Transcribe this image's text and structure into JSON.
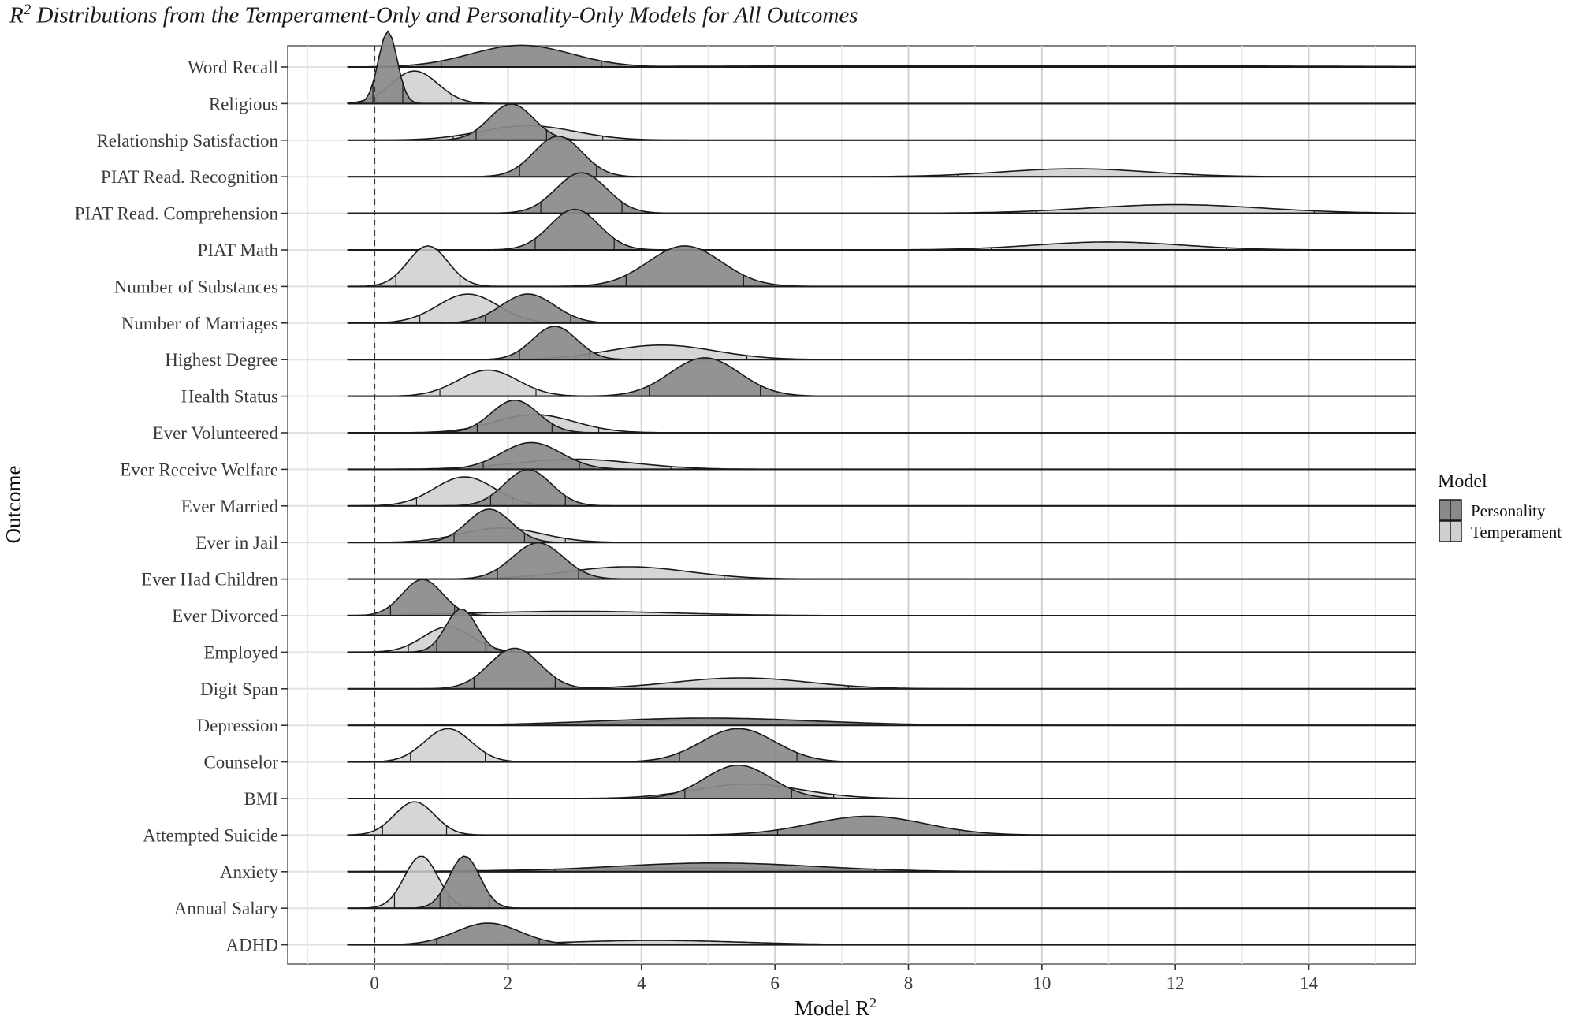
{
  "title_main": "R",
  "title_sup": "2",
  "title_rest": " Distributions from the Temperament-Only and Personality-Only Models for All Outcomes",
  "chart_data": {
    "type": "ridgeline-density",
    "title": "R² Distributions from the Temperament-Only and Personality-Only Models for All Outcomes",
    "xlabel": "Model R",
    "xlabel_sup": "2",
    "ylabel": "Outcome",
    "xlim": [
      -1.3,
      15.6
    ],
    "x_ticks": [
      0,
      2,
      4,
      6,
      8,
      10,
      12,
      14
    ],
    "reference_line": 0,
    "grid": true,
    "legend": {
      "title": "Model",
      "position": "right",
      "entries": [
        {
          "name": "Personality",
          "color": "#8a8a8a"
        },
        {
          "name": "Temperament",
          "color": "#cfcfcf"
        }
      ]
    },
    "colors": {
      "personality": "#8a8a8a",
      "temperament": "#cfcfcf",
      "outline": "#1a1a1a"
    },
    "categories": [
      "Word Recall",
      "Religious",
      "Relationship Satisfaction",
      "PIAT Read. Recognition",
      "PIAT Read. Comprehension",
      "PIAT Math",
      "Number of Substances",
      "Number of Marriages",
      "Highest Degree",
      "Health Status",
      "Ever Volunteered",
      "Ever Receive Welfare",
      "Ever Married",
      "Ever in Jail",
      "Ever Had Children",
      "Ever Divorced",
      "Employed",
      "Digit Span",
      "Depression",
      "Counselor",
      "BMI",
      "Attempted Suicide",
      "Anxiety",
      "Annual Salary",
      "ADHD"
    ],
    "series": [
      {
        "name": "Personality",
        "distributions": [
          {
            "mean": 2.2,
            "sd": 0.75,
            "peak": 0.3
          },
          {
            "mean": 0.2,
            "sd": 0.14,
            "peak": 1.0
          },
          {
            "mean": 2.05,
            "sd": 0.33,
            "peak": 0.5
          },
          {
            "mean": 2.75,
            "sd": 0.36,
            "peak": 0.56
          },
          {
            "mean": 3.1,
            "sd": 0.38,
            "peak": 0.56
          },
          {
            "mean": 3.0,
            "sd": 0.37,
            "peak": 0.56
          },
          {
            "mean": 4.65,
            "sd": 0.55,
            "peak": 0.56
          },
          {
            "mean": 2.3,
            "sd": 0.4,
            "peak": 0.4
          },
          {
            "mean": 2.7,
            "sd": 0.33,
            "peak": 0.46
          },
          {
            "mean": 4.95,
            "sd": 0.52,
            "peak": 0.53
          },
          {
            "mean": 2.1,
            "sd": 0.35,
            "peak": 0.45
          },
          {
            "mean": 2.35,
            "sd": 0.45,
            "peak": 0.37
          },
          {
            "mean": 2.3,
            "sd": 0.35,
            "peak": 0.5
          },
          {
            "mean": 1.72,
            "sd": 0.33,
            "peak": 0.46
          },
          {
            "mean": 2.45,
            "sd": 0.38,
            "peak": 0.5
          },
          {
            "mean": 0.72,
            "sd": 0.3,
            "peak": 0.5
          },
          {
            "mean": 1.3,
            "sd": 0.23,
            "peak": 0.6
          },
          {
            "mean": 2.1,
            "sd": 0.38,
            "peak": 0.56
          },
          {
            "mean": 5.0,
            "sd": 1.6,
            "peak": 0.1
          },
          {
            "mean": 5.45,
            "sd": 0.55,
            "peak": 0.46
          },
          {
            "mean": 5.45,
            "sd": 0.5,
            "peak": 0.46
          },
          {
            "mean": 7.4,
            "sd": 0.85,
            "peak": 0.26
          },
          {
            "mean": 5.1,
            "sd": 1.5,
            "peak": 0.12
          },
          {
            "mean": 1.35,
            "sd": 0.23,
            "peak": 0.72
          },
          {
            "mean": 1.7,
            "sd": 0.48,
            "peak": 0.3
          }
        ]
      },
      {
        "name": "Temperament",
        "distributions": [
          {
            "mean": 9.5,
            "sd": 4.0,
            "peak": 0.02
          },
          {
            "mean": 0.6,
            "sd": 0.35,
            "peak": 0.45
          },
          {
            "mean": 2.3,
            "sd": 0.7,
            "peak": 0.2
          },
          {
            "mean": 10.5,
            "sd": 1.1,
            "peak": 0.11
          },
          {
            "mean": 12.0,
            "sd": 1.3,
            "peak": 0.12
          },
          {
            "mean": 11.0,
            "sd": 1.1,
            "peak": 0.11
          },
          {
            "mean": 0.8,
            "sd": 0.3,
            "peak": 0.56
          },
          {
            "mean": 1.4,
            "sd": 0.45,
            "peak": 0.4
          },
          {
            "mean": 4.3,
            "sd": 0.8,
            "peak": 0.2
          },
          {
            "mean": 1.7,
            "sd": 0.45,
            "peak": 0.36
          },
          {
            "mean": 2.4,
            "sd": 0.6,
            "peak": 0.25
          },
          {
            "mean": 3.0,
            "sd": 0.9,
            "peak": 0.14
          },
          {
            "mean": 1.35,
            "sd": 0.45,
            "peak": 0.4
          },
          {
            "mean": 1.9,
            "sd": 0.6,
            "peak": 0.2
          },
          {
            "mean": 3.8,
            "sd": 0.9,
            "peak": 0.17
          },
          {
            "mean": 3.0,
            "sd": 1.5,
            "peak": 0.06
          },
          {
            "mean": 1.1,
            "sd": 0.37,
            "peak": 0.35
          },
          {
            "mean": 5.5,
            "sd": 1.0,
            "peak": 0.15
          },
          {
            "mean": 5.3,
            "sd": 1.3,
            "peak": 0.08
          },
          {
            "mean": 1.1,
            "sd": 0.35,
            "peak": 0.46
          },
          {
            "mean": 5.6,
            "sd": 0.8,
            "peak": 0.2
          },
          {
            "mean": 0.6,
            "sd": 0.3,
            "peak": 0.46
          },
          {
            "mean": 4.5,
            "sd": 1.8,
            "peak": 0.05
          },
          {
            "mean": 0.7,
            "sd": 0.25,
            "peak": 0.72
          },
          {
            "mean": 4.2,
            "sd": 1.3,
            "peak": 0.06
          }
        ]
      }
    ]
  }
}
